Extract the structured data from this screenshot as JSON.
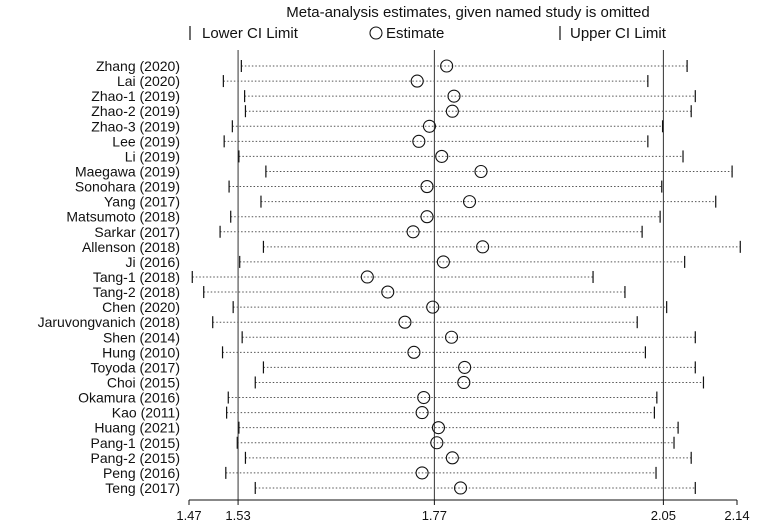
{
  "chart_data": {
    "type": "scatter",
    "title": "Meta-analysis estimates, given named study is omitted",
    "legend": {
      "lower": "Lower CI Limit",
      "estimate": "Estimate",
      "upper": "Upper CI Limit",
      "placement": "top"
    },
    "xlim": [
      1.47,
      2.14
    ],
    "ticks": [
      {
        "value": 1.47,
        "label": "1.47"
      },
      {
        "value": 1.53,
        "label": "1.53"
      },
      {
        "value": 1.77,
        "label": "1.77"
      },
      {
        "value": 2.05,
        "label": "2.05"
      },
      {
        "value": 2.14,
        "label": "2.14"
      }
    ],
    "reference_lines": [
      1.53,
      1.77,
      2.05
    ],
    "studies": [
      {
        "name": "Zhang (2020)",
        "lower": 1.534,
        "estimate": 1.785,
        "upper": 2.079
      },
      {
        "name": "Lai (2020)",
        "lower": 1.512,
        "estimate": 1.749,
        "upper": 2.031
      },
      {
        "name": "Zhao-1 (2019)",
        "lower": 1.538,
        "estimate": 1.794,
        "upper": 2.089
      },
      {
        "name": "Zhao-2 (2019)",
        "lower": 1.539,
        "estimate": 1.792,
        "upper": 2.084
      },
      {
        "name": "Zhao-3 (2019)",
        "lower": 1.523,
        "estimate": 1.764,
        "upper": 2.049
      },
      {
        "name": "Lee (2019)",
        "lower": 1.513,
        "estimate": 1.751,
        "upper": 2.031
      },
      {
        "name": "Li (2019)",
        "lower": 1.531,
        "estimate": 1.779,
        "upper": 2.074
      },
      {
        "name": "Maegawa (2019)",
        "lower": 1.564,
        "estimate": 1.827,
        "upper": 2.134
      },
      {
        "name": "Sonohara (2019)",
        "lower": 1.519,
        "estimate": 1.761,
        "upper": 2.048
      },
      {
        "name": "Yang (2017)",
        "lower": 1.558,
        "estimate": 1.813,
        "upper": 2.114
      },
      {
        "name": "Matsumoto (2018)",
        "lower": 1.521,
        "estimate": 1.761,
        "upper": 2.046
      },
      {
        "name": "Sarkar (2017)",
        "lower": 1.508,
        "estimate": 1.744,
        "upper": 2.024
      },
      {
        "name": "Allenson (2018)",
        "lower": 1.561,
        "estimate": 1.829,
        "upper": 2.144
      },
      {
        "name": "Ji (2016)",
        "lower": 1.532,
        "estimate": 1.781,
        "upper": 2.076
      },
      {
        "name": "Tang-1 (2018)",
        "lower": 1.474,
        "estimate": 1.688,
        "upper": 1.964
      },
      {
        "name": "Tang-2 (2018)",
        "lower": 1.488,
        "estimate": 1.713,
        "upper": 2.003
      },
      {
        "name": "Chen (2020)",
        "lower": 1.524,
        "estimate": 1.768,
        "upper": 2.054
      },
      {
        "name": "Jaruvongvanich (2018)",
        "lower": 1.499,
        "estimate": 1.734,
        "upper": 2.018
      },
      {
        "name": "Shen (2014)",
        "lower": 1.535,
        "estimate": 1.791,
        "upper": 2.089
      },
      {
        "name": "Hung (2010)",
        "lower": 1.511,
        "estimate": 1.745,
        "upper": 2.028
      },
      {
        "name": "Toyoda (2017)",
        "lower": 1.561,
        "estimate": 1.807,
        "upper": 2.089
      },
      {
        "name": "Choi (2015)",
        "lower": 1.551,
        "estimate": 1.806,
        "upper": 2.099
      },
      {
        "name": "Okamura (2016)",
        "lower": 1.518,
        "estimate": 1.757,
        "upper": 2.042
      },
      {
        "name": "Kao (2011)",
        "lower": 1.516,
        "estimate": 1.755,
        "upper": 2.039
      },
      {
        "name": "Huang (2021)",
        "lower": 1.531,
        "estimate": 1.775,
        "upper": 2.068
      },
      {
        "name": "Pang-1 (2015)",
        "lower": 1.529,
        "estimate": 1.773,
        "upper": 2.063
      },
      {
        "name": "Pang-2 (2015)",
        "lower": 1.539,
        "estimate": 1.792,
        "upper": 2.084
      },
      {
        "name": "Peng (2016)",
        "lower": 1.515,
        "estimate": 1.755,
        "upper": 2.041
      },
      {
        "name": "Teng (2017)",
        "lower": 1.551,
        "estimate": 1.802,
        "upper": 2.089
      }
    ]
  }
}
